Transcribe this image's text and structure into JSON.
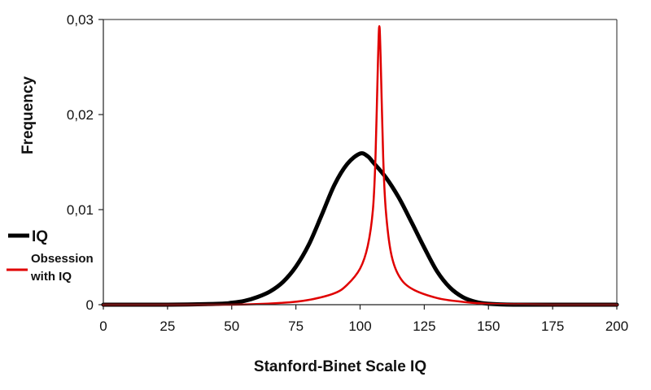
{
  "chart_data": {
    "type": "line",
    "title": "",
    "xlabel": "Stanford-Binet Scale IQ",
    "ylabel": "Frequency",
    "xlim": [
      0,
      200
    ],
    "ylim": [
      0,
      0.03
    ],
    "x_ticks": [
      0,
      25,
      50,
      75,
      100,
      125,
      150,
      175,
      200
    ],
    "x_tick_labels": [
      "0",
      "25",
      "50",
      "75",
      "100",
      "125",
      "150",
      "175",
      "200"
    ],
    "y_ticks": [
      0,
      0.01,
      0.02,
      0.03
    ],
    "y_tick_labels": [
      "0",
      "0,01",
      "0,02",
      "0,03"
    ],
    "grid": false,
    "legend_position": "left",
    "series": [
      {
        "name": "IQ",
        "color": "#000000",
        "x": [
          0,
          25,
          45,
          50,
          55,
          60,
          65,
          70,
          75,
          80,
          85,
          90,
          95,
          100,
          103,
          105,
          110,
          115,
          120,
          125,
          130,
          135,
          140,
          145,
          150,
          160,
          175,
          200
        ],
        "y": [
          0,
          0,
          0.0001,
          0.0002,
          0.0004,
          0.0008,
          0.0014,
          0.0024,
          0.004,
          0.0063,
          0.0094,
          0.0126,
          0.0148,
          0.0159,
          0.0156,
          0.015,
          0.0134,
          0.0113,
          0.0087,
          0.006,
          0.0035,
          0.0018,
          0.0008,
          0.0003,
          0.0001,
          0,
          0,
          0
        ]
      },
      {
        "name": "Obsession with IQ",
        "color": "#e00000",
        "x": [
          0,
          50,
          70,
          80,
          90,
          95,
          100,
          103,
          105,
          106,
          107,
          107.5,
          108,
          109,
          110,
          112,
          115,
          120,
          130,
          140,
          150,
          175,
          200
        ],
        "y": [
          0,
          0,
          0.0002,
          0.0005,
          0.0012,
          0.0021,
          0.0038,
          0.0062,
          0.01,
          0.0155,
          0.026,
          0.0293,
          0.026,
          0.0155,
          0.01,
          0.0055,
          0.0031,
          0.0017,
          0.0007,
          0.0003,
          0.0001,
          0,
          0
        ]
      }
    ]
  },
  "legend": {
    "iq_label": "IQ",
    "obsession_label_line1": "Obsession",
    "obsession_label_line2": "with IQ"
  }
}
